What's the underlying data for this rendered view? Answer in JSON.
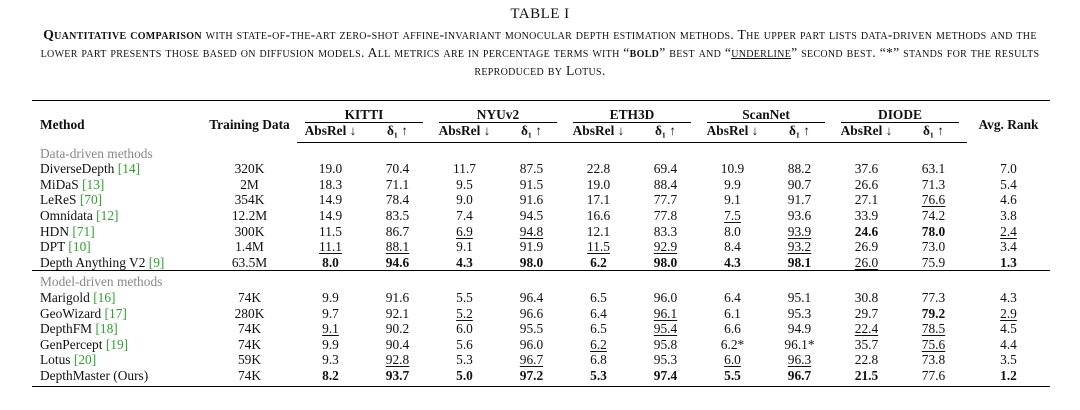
{
  "title": "TABLE I",
  "caption": {
    "lead": "Quantitative comparison",
    "text1": " with state-of-the-art zero-shot affine-invariant monocular depth estimation methods. The upper part lists data-driven methods and the lower part presents those based on diffusion models. All metrics are in percentage terms with “",
    "bold_word": "bold",
    "text2": "” best and “",
    "underline_word": "underline",
    "text3": "” second best. “*” stands for the results reproduced by Lotus."
  },
  "columns": {
    "method": "Method",
    "training_data": "Training Data",
    "datasets": [
      "KITTI",
      "NYUv2",
      "ETH3D",
      "ScanNet",
      "DIODE"
    ],
    "metrics": [
      "AbsRel ↓",
      "δ₁ ↑"
    ],
    "avg_rank": "Avg. Rank"
  },
  "groups": [
    {
      "label": "Data-driven methods",
      "rows": [
        {
          "method": "DiverseDepth",
          "ref": "[14]",
          "training_data": "320K",
          "values": [
            "19.0",
            "70.4",
            "11.7",
            "87.5",
            "22.8",
            "69.4",
            "10.9",
            "88.2",
            "37.6",
            "63.1",
            "7.0"
          ],
          "bold": [],
          "underline": []
        },
        {
          "method": "MiDaS",
          "ref": "[13]",
          "training_data": "2M",
          "values": [
            "18.3",
            "71.1",
            "9.5",
            "91.5",
            "19.0",
            "88.4",
            "9.9",
            "90.7",
            "26.6",
            "71.3",
            "5.4"
          ],
          "bold": [],
          "underline": []
        },
        {
          "method": "LeReS",
          "ref": "[70]",
          "training_data": "354K",
          "values": [
            "14.9",
            "78.4",
            "9.0",
            "91.6",
            "17.1",
            "77.7",
            "9.1",
            "91.7",
            "27.1",
            "76.6",
            "4.6"
          ],
          "bold": [],
          "underline": [
            9
          ]
        },
        {
          "method": "Omnidata",
          "ref": "[12]",
          "training_data": "12.2M",
          "values": [
            "14.9",
            "83.5",
            "7.4",
            "94.5",
            "16.6",
            "77.8",
            "7.5",
            "93.6",
            "33.9",
            "74.2",
            "3.8"
          ],
          "bold": [],
          "underline": [
            6
          ]
        },
        {
          "method": "HDN",
          "ref": "[71]",
          "training_data": "300K",
          "values": [
            "11.5",
            "86.7",
            "6.9",
            "94.8",
            "12.1",
            "83.3",
            "8.0",
            "93.9",
            "24.6",
            "78.0",
            "2.4"
          ],
          "bold": [
            8,
            9
          ],
          "underline": [
            2,
            3,
            7,
            10
          ]
        },
        {
          "method": "DPT",
          "ref": "[10]",
          "training_data": "1.4M",
          "values": [
            "11.1",
            "88.1",
            "9.1",
            "91.9",
            "11.5",
            "92.9",
            "8.4",
            "93.2",
            "26.9",
            "73.0",
            "3.4"
          ],
          "bold": [],
          "underline": [
            0,
            1,
            4,
            5,
            7
          ]
        },
        {
          "method": "Depth Anything V2",
          "ref": "[9]",
          "training_data": "63.5M",
          "values": [
            "8.0",
            "94.6",
            "4.3",
            "98.0",
            "6.2",
            "98.0",
            "4.3",
            "98.1",
            "26.0",
            "75.9",
            "1.3"
          ],
          "bold": [
            0,
            1,
            2,
            3,
            4,
            5,
            6,
            7,
            10
          ],
          "underline": [
            8
          ]
        }
      ]
    },
    {
      "label": "Model-driven methods",
      "rows": [
        {
          "method": "Marigold",
          "ref": "[16]",
          "training_data": "74K",
          "values": [
            "9.9",
            "91.6",
            "5.5",
            "96.4",
            "6.5",
            "96.0",
            "6.4",
            "95.1",
            "30.8",
            "77.3",
            "4.3"
          ],
          "bold": [],
          "underline": []
        },
        {
          "method": "GeoWizard",
          "ref": "[17]",
          "training_data": "280K",
          "values": [
            "9.7",
            "92.1",
            "5.2",
            "96.6",
            "6.4",
            "96.1",
            "6.1",
            "95.3",
            "29.7",
            "79.2",
            "2.9"
          ],
          "bold": [
            9
          ],
          "underline": [
            2,
            5,
            10
          ]
        },
        {
          "method": "DepthFM",
          "ref": "[18]",
          "training_data": "74K",
          "values": [
            "9.1",
            "90.2",
            "6.0",
            "95.5",
            "6.5",
            "95.4",
            "6.6",
            "94.9",
            "22.4",
            "78.5",
            "4.5"
          ],
          "bold": [],
          "underline": [
            0,
            5,
            8,
            9
          ]
        },
        {
          "method": "GenPercept",
          "ref": "[19]",
          "training_data": "74K",
          "values": [
            "9.9",
            "90.4",
            "5.6",
            "96.0",
            "6.2",
            "95.8",
            "6.2*",
            "96.1*",
            "35.7",
            "75.6",
            "4.4"
          ],
          "bold": [],
          "underline": [
            4,
            9
          ]
        },
        {
          "method": "Lotus",
          "ref": "[20]",
          "training_data": "59K",
          "values": [
            "9.3",
            "92.8",
            "5.3",
            "96.7",
            "6.8",
            "95.3",
            "6.0",
            "96.3",
            "22.8",
            "73.8",
            "3.5"
          ],
          "bold": [],
          "underline": [
            1,
            3,
            6,
            7
          ]
        },
        {
          "method": "DepthMaster (Ours)",
          "training_data": "74K",
          "values": [
            "8.2",
            "93.7",
            "5.0",
            "97.2",
            "5.3",
            "97.4",
            "5.5",
            "96.7",
            "21.5",
            "77.6",
            "1.2"
          ],
          "bold": [
            0,
            1,
            2,
            3,
            4,
            5,
            6,
            7,
            8,
            10
          ],
          "underline": []
        }
      ]
    }
  ]
}
